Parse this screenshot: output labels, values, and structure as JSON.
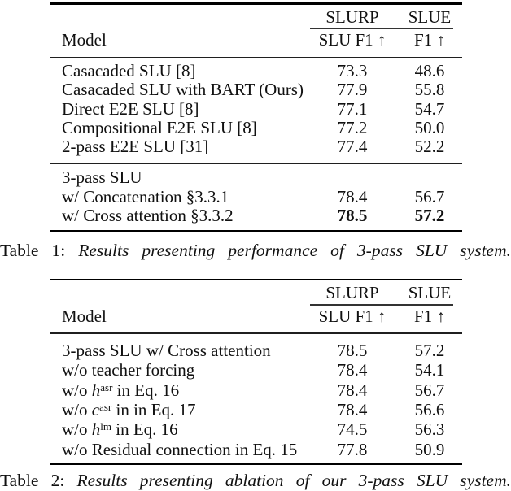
{
  "page": {
    "background": "#ffffff",
    "text_color": "#111111"
  },
  "tables": [
    {
      "header": {
        "group_slurp": "SLURP",
        "group_slue": "SLUE",
        "model": "Model",
        "col_slurp": "SLU F1 ↑",
        "col_slue": "F1 ↑"
      },
      "sections": [
        {
          "rows": [
            {
              "label": "Casacaded SLU [8]",
              "slurp": "73.3",
              "slue": "48.6"
            },
            {
              "label": "Casacaded SLU with BART (Ours)",
              "slurp": "77.9",
              "slue": "55.8"
            },
            {
              "label": "Direct E2E SLU [8]",
              "slurp": "77.1",
              "slue": "54.7"
            },
            {
              "label": "Compositional E2E SLU [8]",
              "slurp": "77.2",
              "slue": "50.0"
            },
            {
              "label": "2-pass E2E SLU [31]",
              "slurp": "77.4",
              "slue": "52.2"
            }
          ]
        },
        {
          "rows": [
            {
              "label": "3-pass SLU",
              "slurp": "",
              "slue": ""
            },
            {
              "label": "w/ Concatenation §3.3.1",
              "slurp": "78.4",
              "slue": "56.7"
            },
            {
              "label": "w/ Cross attention §3.3.2",
              "slurp": "78.5",
              "slue": "57.2",
              "bold_values": true
            }
          ]
        }
      ],
      "caption": {
        "prefix": "Table 1:",
        "text": "Results presenting performance of 3-pass SLU system."
      }
    },
    {
      "header": {
        "group_slurp": "SLURP",
        "group_slue": "SLUE",
        "model": "Model",
        "col_slurp": "SLU F1 ↑",
        "col_slue": "F1 ↑"
      },
      "sections": [
        {
          "rows": [
            {
              "label": "3-pass SLU w/ Cross attention",
              "slurp": "78.5",
              "slue": "57.2"
            },
            {
              "label": "w/o teacher forcing",
              "slurp": "78.4",
              "slue": "54.1"
            },
            {
              "label": "w/o ",
              "math_var": "h",
              "math_sup": "asr",
              "label_rest": " in Eq. 16",
              "slurp": "78.4",
              "slue": "56.7"
            },
            {
              "label": "w/o ",
              "math_var": "c",
              "math_sup": "asr",
              "label_rest": " in in Eq. 17",
              "slurp": "78.4",
              "slue": "56.6"
            },
            {
              "label": "w/o ",
              "math_var": "h",
              "math_sup": "lm",
              "label_rest": " in Eq. 16",
              "slurp": "74.5",
              "slue": "56.3"
            },
            {
              "label": "w/o Residual connection in Eq. 15",
              "slurp": "77.8",
              "slue": "50.9"
            }
          ]
        }
      ],
      "caption": {
        "prefix": "Table 2:",
        "text": "Results presenting ablation of our 3-pass SLU system."
      }
    }
  ]
}
